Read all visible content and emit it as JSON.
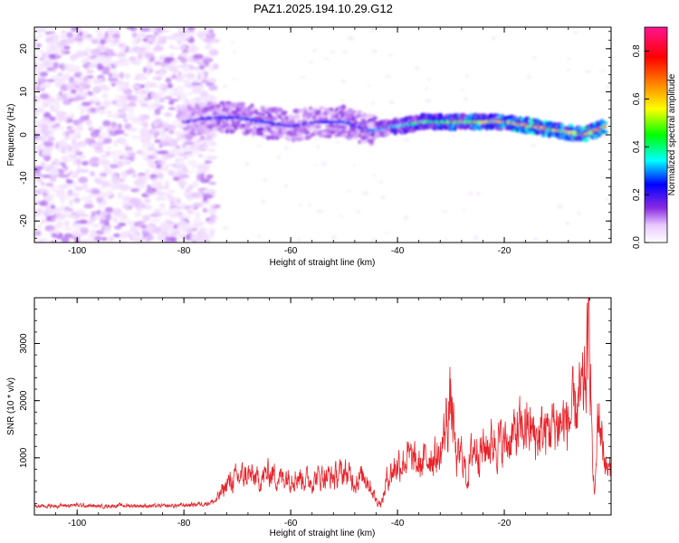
{
  "title": "PAZ1.2025.194.10.29.G12",
  "chart_data": [
    {
      "type": "heatmap",
      "xlabel": "Height of straight line (km)",
      "ylabel": "Frequency (Hz)",
      "xlim": [
        -108,
        0
      ],
      "ylim": [
        -25,
        25
      ],
      "xticks": [
        -100,
        -80,
        -60,
        -40,
        -20
      ],
      "yticks": [
        -20,
        -10,
        0,
        10,
        20
      ],
      "colorbar": {
        "label": "Normalized spectral amplitude",
        "range": [
          0,
          0.9
        ],
        "ticks": [
          0.0,
          0.2,
          0.4,
          0.6,
          0.8
        ],
        "colormap": [
          "#ffffff",
          "#e9c9ff",
          "#8a2be2",
          "#0000ff",
          "#00ffff",
          "#00ff00",
          "#ffff00",
          "#ff8000",
          "#ff0000",
          "#ff1493"
        ]
      },
      "ridge": {
        "x": [
          -80,
          -75,
          -70,
          -65,
          -60,
          -55,
          -50,
          -45,
          -40,
          -35,
          -30,
          -25,
          -20,
          -15,
          -10,
          -5,
          -1
        ],
        "freq_hz": [
          3,
          4,
          4,
          3,
          2,
          3,
          3,
          1,
          2,
          3,
          3,
          3,
          3,
          2,
          1,
          0,
          2
        ],
        "amplitude": [
          0.3,
          0.35,
          0.4,
          0.4,
          0.35,
          0.35,
          0.4,
          0.4,
          0.5,
          0.6,
          0.7,
          0.75,
          0.8,
          0.85,
          0.75,
          0.85,
          0.9
        ]
      },
      "noise_region_xlim": [
        -108,
        -74
      ]
    },
    {
      "type": "line",
      "xlabel": "Height of straight line (km)",
      "ylabel": "SNR (10 * v/v)",
      "xlim": [
        -108,
        0
      ],
      "ylim": [
        0,
        3800
      ],
      "xticks": [
        -100,
        -80,
        -60,
        -40,
        -20
      ],
      "yticks": [
        1000,
        2000,
        3000
      ],
      "series": [
        {
          "color": "#e8232a",
          "x": [
            -108,
            -104,
            -100,
            -96,
            -92,
            -88,
            -84,
            -80,
            -76,
            -74,
            -73,
            -72,
            -70,
            -68,
            -66,
            -64,
            -62,
            -60,
            -58,
            -56,
            -54,
            -52,
            -50,
            -48,
            -46,
            -44,
            -43,
            -42,
            -40,
            -38,
            -36,
            -34,
            -32,
            -31,
            -30,
            -29,
            -28,
            -27,
            -26,
            -24,
            -22,
            -20,
            -18,
            -16,
            -14,
            -12,
            -10,
            -8,
            -6,
            -5,
            -4,
            -3.5,
            -3,
            -2.5,
            -2,
            -1.5,
            -1,
            0
          ],
          "values": [
            150,
            160,
            170,
            150,
            165,
            160,
            155,
            170,
            200,
            250,
            400,
            550,
            650,
            700,
            600,
            750,
            650,
            700,
            650,
            600,
            700,
            650,
            750,
            600,
            700,
            250,
            200,
            650,
            900,
            1000,
            850,
            1050,
            1000,
            1600,
            2000,
            900,
            1100,
            600,
            1200,
            1150,
            1300,
            1250,
            1400,
            1550,
            1350,
            1500,
            1600,
            1650,
            1950,
            2200,
            3400,
            600,
            400,
            1900,
            1500,
            1200,
            800,
            750
          ]
        }
      ]
    }
  ]
}
